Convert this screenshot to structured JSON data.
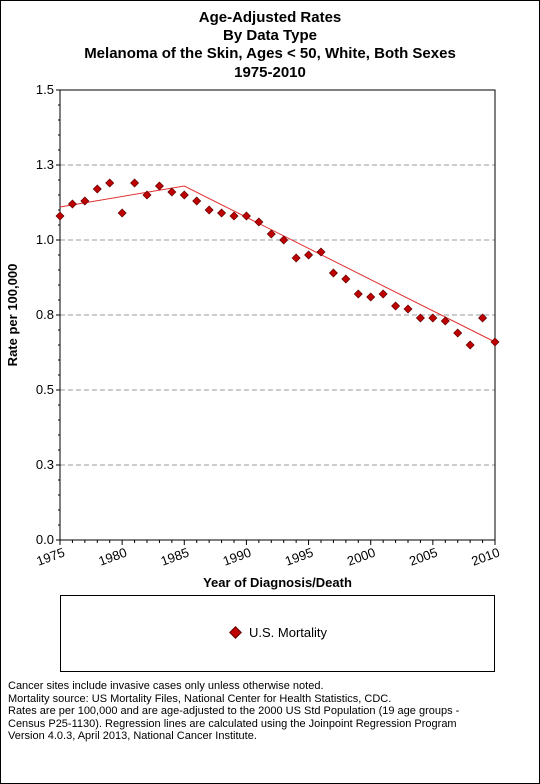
{
  "titles": {
    "line1": "Age-Adjusted  Rates",
    "line2": "By Data Type",
    "line3": "Melanoma of the Skin, Ages < 50, White, Both Sexes",
    "line4": "1975-2010"
  },
  "legend": {
    "label": "U.S. Mortality"
  },
  "footnotes": [
    "Cancer sites include invasive cases only unless otherwise noted.",
    "Mortality source: US Mortality Files, National Center for Health Statistics, CDC.",
    "Rates are per 100,000 and are age-adjusted to the 2000 US Std Population (19 age groups -",
    "Census P25-1130). Regression lines are calculated using the Joinpoint Regression Program",
    "Version 4.0.3, April 2013, National Cancer Institute."
  ],
  "colors": {
    "marker": "#c00000",
    "marker_edge": "#600000",
    "line": "#e03030",
    "grid": "#999999"
  },
  "chart_data": {
    "type": "scatter",
    "xlabel": "Year of Diagnosis/Death",
    "ylabel": "Rate per 100,000",
    "xlim": [
      1975,
      2010
    ],
    "ylim": [
      0.0,
      1.5
    ],
    "x_ticks": [
      1975,
      1980,
      1985,
      1990,
      1995,
      2000,
      2005,
      2010
    ],
    "y_ticks": [
      0.0,
      0.25,
      0.5,
      0.75,
      1.0,
      1.25,
      1.5
    ],
    "y_tick_labels": [
      "0.0",
      "0.3",
      "0.5",
      "0.8",
      "1.0",
      "1.3",
      "1.5"
    ],
    "grid": "horizontal dashed",
    "legend_position": "bottom",
    "series": [
      {
        "name": "U.S. Mortality",
        "x": [
          1975,
          1976,
          1977,
          1978,
          1979,
          1980,
          1981,
          1982,
          1983,
          1984,
          1985,
          1986,
          1987,
          1988,
          1989,
          1990,
          1991,
          1992,
          1993,
          1994,
          1995,
          1996,
          1997,
          1998,
          1999,
          2000,
          2001,
          2002,
          2003,
          2004,
          2005,
          2006,
          2007,
          2008,
          2009,
          2010
        ],
        "y": [
          1.08,
          1.12,
          1.13,
          1.17,
          1.19,
          1.09,
          1.19,
          1.15,
          1.18,
          1.16,
          1.15,
          1.13,
          1.1,
          1.09,
          1.08,
          1.08,
          1.06,
          1.02,
          1.0,
          0.94,
          0.95,
          0.96,
          0.89,
          0.87,
          0.82,
          0.81,
          0.82,
          0.78,
          0.77,
          0.74,
          0.74,
          0.73,
          0.69,
          0.65,
          0.74,
          0.66
        ]
      }
    ],
    "regression": {
      "x": [
        1975,
        1985,
        2010
      ],
      "y": [
        1.11,
        1.18,
        0.66
      ]
    }
  }
}
